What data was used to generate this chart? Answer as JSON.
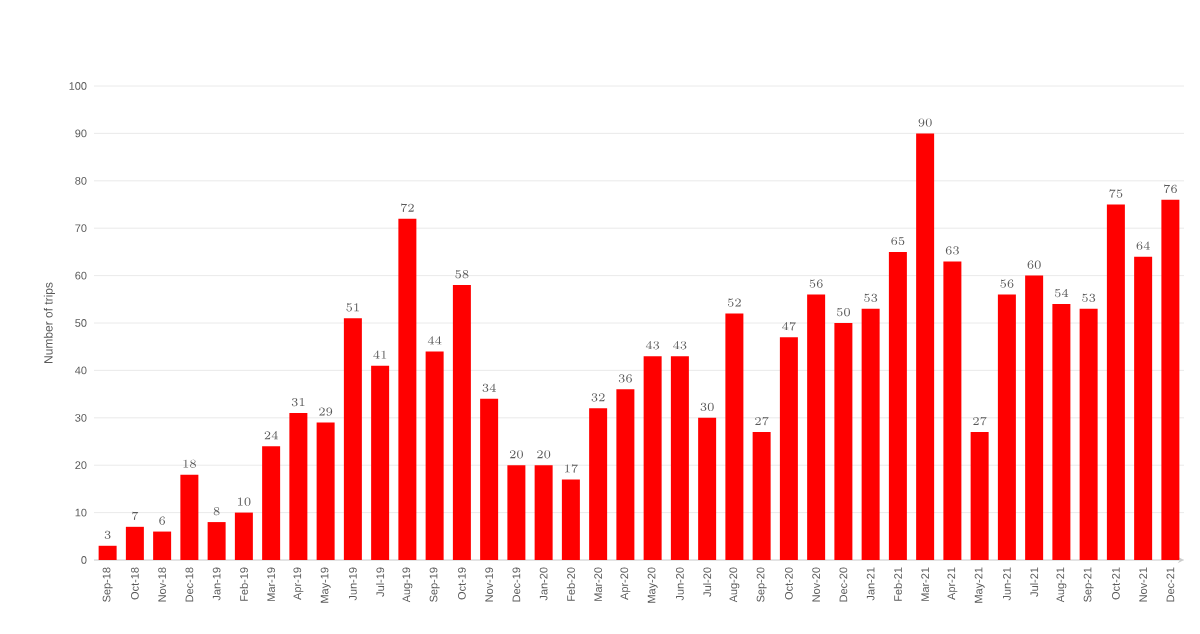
{
  "chart_data": {
    "type": "bar",
    "ylabel": "Number of trips",
    "categories": [
      "Sep-18",
      "Oct-18",
      "Nov-18",
      "Dec-18",
      "Jan-19",
      "Feb-19",
      "Mar-19",
      "Apr-19",
      "May-19",
      "Jun-19",
      "Jul-19",
      "Aug-19",
      "Sep-19",
      "Oct-19",
      "Nov-19",
      "Dec-19",
      "Jan-20",
      "Feb-20",
      "Mar-20",
      "Apr-20",
      "May-20",
      "Jun-20",
      "Jul-20",
      "Aug-20",
      "Sep-20",
      "Oct-20",
      "Nov-20",
      "Dec-20",
      "Jan-21",
      "Feb-21",
      "Mar-21",
      "Apr-21",
      "May-21",
      "Jun-21",
      "Jul-21",
      "Aug-21",
      "Sep-21",
      "Oct-21",
      "Nov-21",
      "Dec-21"
    ],
    "values": [
      3,
      7,
      6,
      18,
      8,
      10,
      24,
      31,
      29,
      51,
      41,
      72,
      44,
      58,
      34,
      20,
      20,
      17,
      32,
      36,
      43,
      43,
      30,
      52,
      27,
      47,
      56,
      50,
      53,
      65,
      90,
      63,
      27,
      56,
      60,
      54,
      53,
      75,
      64,
      76
    ],
    "color": "#ff0000",
    "ylim": [
      0,
      100
    ],
    "yticks": [
      0,
      10,
      20,
      30,
      40,
      50,
      60,
      70,
      80,
      90,
      100
    ],
    "grid": "y",
    "data_labels": true
  }
}
